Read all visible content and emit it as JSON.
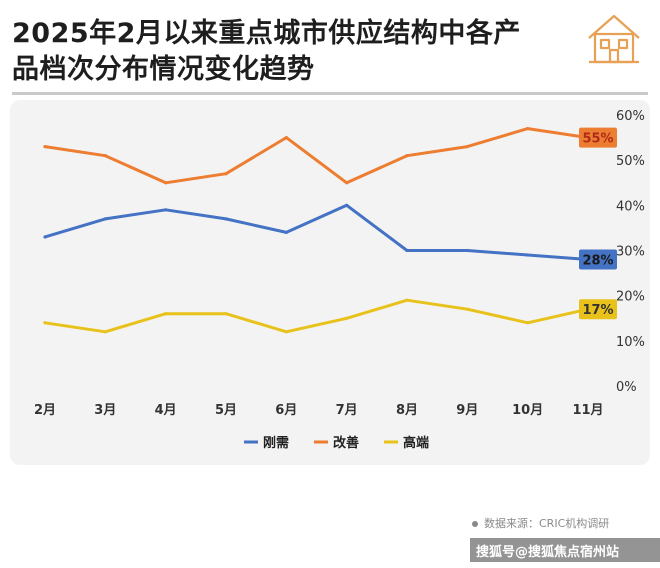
{
  "title": "2025年2月以来重点城市供应结构中各产品档次分布情况变化趋势",
  "source": "数据来源：CRIC机构调研",
  "footer": "搜狐号@搜狐焦点宿州站",
  "chart_data": {
    "type": "line",
    "categories": [
      "2月",
      "3月",
      "4月",
      "5月",
      "6月",
      "7月",
      "8月",
      "9月",
      "10月",
      "11月"
    ],
    "ylim": [
      0,
      60
    ],
    "yticks": [
      "0%",
      "10%",
      "20%",
      "30%",
      "40%",
      "50%",
      "60%"
    ],
    "yaxis_side": "right",
    "legend_position": "bottom",
    "grid": false,
    "series": [
      {
        "name": "刚需",
        "color": "#4472c4",
        "values": [
          33,
          37,
          39,
          37,
          34,
          40,
          30,
          30,
          29,
          28
        ],
        "end_label": "28%"
      },
      {
        "name": "改善",
        "color": "#ed7d31",
        "values": [
          53,
          51,
          45,
          47,
          55,
          45,
          51,
          53,
          57,
          55
        ],
        "end_label": "55%"
      },
      {
        "name": "高端",
        "color": "#e8c21b",
        "values": [
          14,
          12,
          16,
          16,
          12,
          15,
          19,
          17,
          14,
          17
        ],
        "end_label": "17%"
      }
    ]
  }
}
